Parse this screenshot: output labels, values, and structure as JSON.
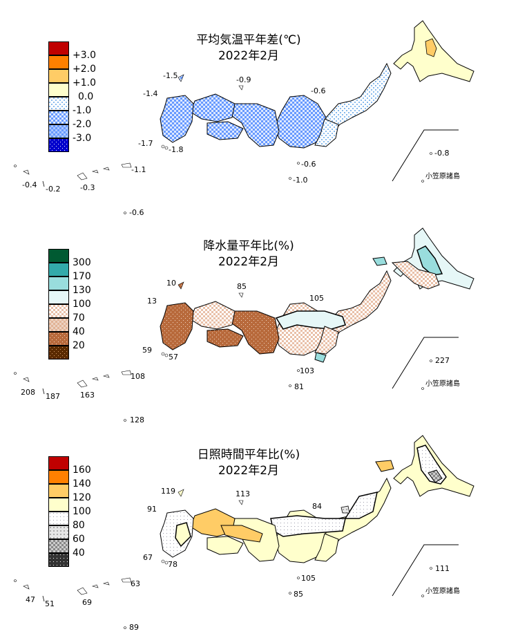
{
  "panels": [
    {
      "id": "temp",
      "title_line1": "平均気温平年差(℃)",
      "title_line2": "2022年2月",
      "legend": [
        "+3.0",
        "+2.0",
        "+1.0",
        "0.0",
        "-1.0",
        "-2.0",
        "-3.0"
      ],
      "legend_colors": [
        "#c00000",
        "#ff8000",
        "#ffcc66",
        "#ffffcc",
        "#ddeeff",
        "#6699ff",
        "#0000cc"
      ],
      "values": [
        "-1.5",
        "-0.9",
        "-1.4",
        "-0.6",
        "-1.7",
        "-1.8",
        "-0.6",
        "-1.0",
        "-0.8",
        "-0.4",
        "-0.2",
        "-0.3",
        "-1.1",
        "-0.6"
      ],
      "islands_label": "小笠原諸島"
    },
    {
      "id": "precip",
      "title_line1": "降水量平年比(%)",
      "title_line2": "2022年2月",
      "legend": [
        "300",
        "170",
        "130",
        "100",
        "70",
        "40",
        "20"
      ],
      "legend_colors": [
        "#005a32",
        "#33aaaa",
        "#99dddd",
        "#e6f7f7",
        "#f5ddd0",
        "#b86a3c",
        "#5a2a00"
      ],
      "values": [
        "10",
        "85",
        "13",
        "105",
        "59",
        "57",
        "103",
        "81",
        "227",
        "208",
        "187",
        "163",
        "108",
        "128"
      ],
      "islands_label": "小笠原諸島"
    },
    {
      "id": "sun",
      "title_line1": "日照時間平年比(%)",
      "title_line2": "2022年2月",
      "legend": [
        "160",
        "140",
        "120",
        "100",
        "80",
        "60",
        "40"
      ],
      "legend_colors": [
        "#c00000",
        "#ff8000",
        "#ffcc66",
        "#ffffcc",
        "#ffffff",
        "#dddddd",
        "#333333"
      ],
      "values": [
        "119",
        "113",
        "91",
        "84",
        "67",
        "78",
        "105",
        "85",
        "111",
        "47",
        "51",
        "69",
        "63",
        "89"
      ],
      "islands_label": "小笠原諸島"
    }
  ]
}
